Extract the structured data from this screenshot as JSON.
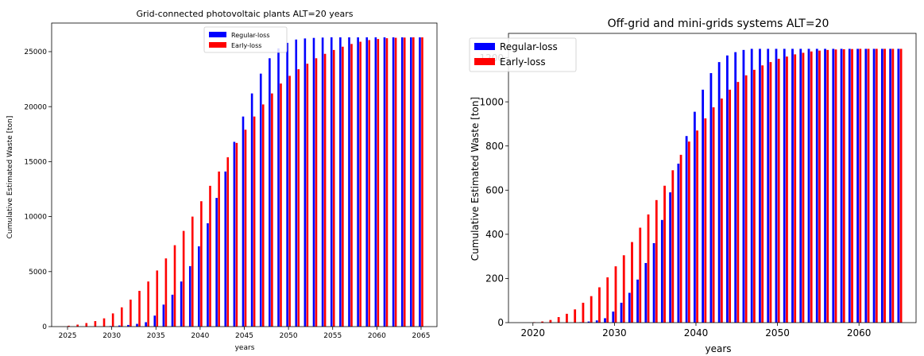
{
  "chart_data": [
    {
      "type": "bar",
      "title": "Grid-connected photovoltaic plants     ALT=20 years",
      "xlabel": "years",
      "ylabel": "Cumulative Estimated Waste [ton]",
      "x_ticks": [
        2025,
        2030,
        2035,
        2040,
        2045,
        2050,
        2055,
        2060,
        2065
      ],
      "y_ticks": [
        0,
        5000,
        10000,
        15000,
        20000,
        25000
      ],
      "xlim": [
        2023.2,
        2066.8
      ],
      "ylim": [
        0,
        27600
      ],
      "legend": "top-center",
      "categories": [
        2025,
        2026,
        2027,
        2028,
        2029,
        2030,
        2031,
        2032,
        2033,
        2034,
        2035,
        2036,
        2037,
        2038,
        2039,
        2040,
        2041,
        2042,
        2043,
        2044,
        2045,
        2046,
        2047,
        2048,
        2049,
        2050,
        2051,
        2052,
        2053,
        2054,
        2055,
        2056,
        2057,
        2058,
        2059,
        2060,
        2061,
        2062,
        2063,
        2064,
        2065
      ],
      "series": [
        {
          "name": "Regular-loss",
          "color": "#0000ff",
          "values": [
            0,
            0,
            0,
            0,
            0,
            50,
            100,
            150,
            250,
            400,
            1000,
            2000,
            2900,
            4100,
            5500,
            7300,
            9400,
            11700,
            14100,
            16800,
            19100,
            21200,
            23000,
            24400,
            25300,
            25800,
            26100,
            26200,
            26250,
            26280,
            26300,
            26300,
            26300,
            26300,
            26300,
            26300,
            26300,
            26300,
            26300,
            26300,
            26300
          ]
        },
        {
          "name": "Early-loss",
          "color": "#ff0000",
          "values": [
            80,
            180,
            320,
            500,
            750,
            1200,
            1750,
            2450,
            3250,
            4100,
            5100,
            6200,
            7400,
            8700,
            10000,
            11400,
            12800,
            14100,
            15400,
            16700,
            17900,
            19100,
            20200,
            21200,
            22100,
            22800,
            23400,
            23900,
            24400,
            24800,
            25150,
            25450,
            25700,
            25900,
            26050,
            26150,
            26220,
            26260,
            26280,
            26300,
            26300
          ]
        }
      ]
    },
    {
      "type": "bar",
      "title": "Off-grid and mini-grids systems    ALT=20",
      "xlabel": "years",
      "ylabel": "Cumulative Estimated Waste [ton]",
      "x_ticks": [
        2020,
        2030,
        2040,
        2050,
        2060
      ],
      "y_ticks": [
        0,
        200,
        400,
        600,
        800,
        1000,
        1200
      ],
      "xlim": [
        2017,
        2067
      ],
      "ylim": [
        0,
        1310
      ],
      "legend": "top-left",
      "categories": [
        2020,
        2021,
        2022,
        2023,
        2024,
        2025,
        2026,
        2027,
        2028,
        2029,
        2030,
        2031,
        2032,
        2033,
        2034,
        2035,
        2036,
        2037,
        2038,
        2039,
        2040,
        2041,
        2042,
        2043,
        2044,
        2045,
        2046,
        2047,
        2048,
        2049,
        2050,
        2051,
        2052,
        2053,
        2054,
        2055,
        2056,
        2057,
        2058,
        2059,
        2060,
        2061,
        2062,
        2063,
        2064,
        2065
      ],
      "series": [
        {
          "name": "Regular-loss",
          "color": "#0000ff",
          "values": [
            0,
            0,
            0,
            0,
            0,
            0,
            2,
            5,
            10,
            20,
            50,
            90,
            135,
            195,
            270,
            360,
            465,
            590,
            720,
            845,
            955,
            1055,
            1130,
            1180,
            1210,
            1225,
            1235,
            1240,
            1240,
            1240,
            1240,
            1240,
            1240,
            1240,
            1240,
            1240,
            1240,
            1240,
            1240,
            1240,
            1240,
            1240,
            1240,
            1240,
            1240,
            1240
          ]
        },
        {
          "name": "Early-loss",
          "color": "#ff0000",
          "values": [
            2,
            5,
            12,
            25,
            40,
            60,
            90,
            120,
            160,
            205,
            255,
            305,
            365,
            430,
            490,
            555,
            620,
            690,
            760,
            820,
            870,
            925,
            975,
            1015,
            1055,
            1090,
            1120,
            1145,
            1165,
            1180,
            1195,
            1205,
            1215,
            1222,
            1228,
            1232,
            1235,
            1237,
            1238,
            1239,
            1240,
            1240,
            1240,
            1240,
            1240,
            1240
          ]
        }
      ]
    }
  ]
}
